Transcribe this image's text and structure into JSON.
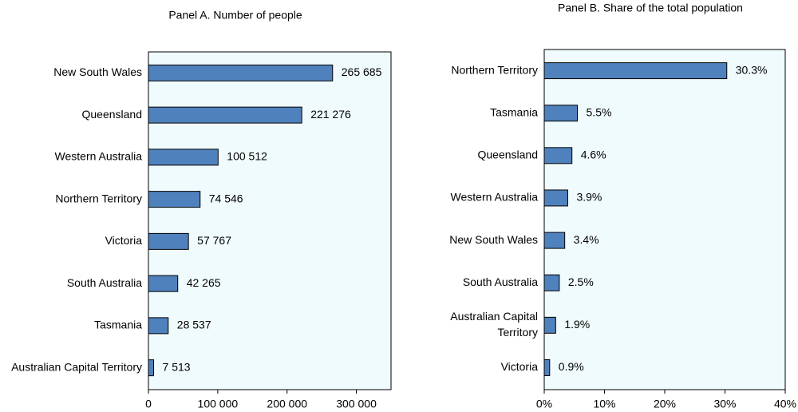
{
  "chart_data": [
    {
      "type": "bar",
      "orientation": "horizontal",
      "title": "Panel A. Number of people",
      "categories": [
        "New South Wales",
        "Queensland",
        "Western Australia",
        "Northern Territory",
        "Victoria",
        "South Australia",
        "Tasmania",
        "Australian Capital Territory"
      ],
      "values": [
        265685,
        221276,
        100512,
        74546,
        57767,
        42265,
        28537,
        7513
      ],
      "value_labels": [
        "265 685",
        "221 276",
        "100 512",
        "74 546",
        "57 767",
        "42 265",
        "28 537",
        "7 513"
      ],
      "xlim": [
        0,
        350000
      ],
      "xticks": [
        0,
        100000,
        200000,
        300000
      ],
      "xtick_labels": [
        "0",
        "100 000",
        "200 000",
        "300 000"
      ],
      "xlabel": "",
      "ylabel": "",
      "grid": false,
      "colors": {
        "bar": "#4f81bd",
        "plot_bg": "#f0fbfd"
      }
    },
    {
      "type": "bar",
      "orientation": "horizontal",
      "title": "Panel B. Share of the total population",
      "categories": [
        "Northern Territory",
        "Tasmania",
        "Queensland",
        "Western Australia",
        "New South Wales",
        "South Australia",
        "Australian Capital Territory",
        "Victoria"
      ],
      "values": [
        30.3,
        5.5,
        4.6,
        3.9,
        3.4,
        2.5,
        1.9,
        0.9
      ],
      "value_labels": [
        "30.3%",
        "5.5%",
        "4.6%",
        "3.9%",
        "3.4%",
        "2.5%",
        "1.9%",
        "0.9%"
      ],
      "xlim": [
        0,
        40
      ],
      "xticks": [
        0,
        10,
        20,
        30,
        40
      ],
      "xtick_labels": [
        "0%",
        "10%",
        "20%",
        "30%",
        "40%"
      ],
      "xlabel": "",
      "ylabel": "",
      "grid": false,
      "colors": {
        "bar": "#4f81bd",
        "plot_bg": "#f0fbfd"
      }
    }
  ]
}
